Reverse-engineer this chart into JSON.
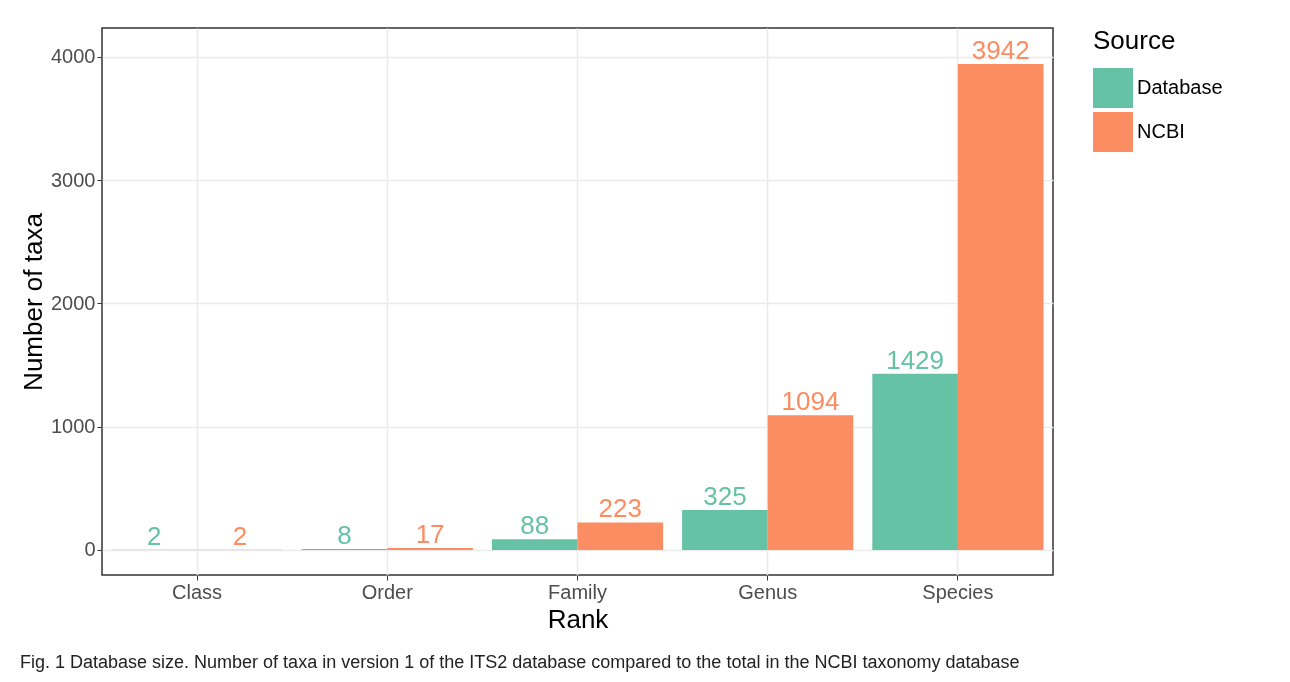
{
  "chart_data": {
    "type": "bar",
    "xlabel": "Rank",
    "ylabel": "Number of taxa",
    "legend_title": "Source",
    "categories": [
      "Class",
      "Order",
      "Family",
      "Genus",
      "Species"
    ],
    "series": [
      {
        "name": "Database",
        "color": "#66c2a5",
        "values": [
          2,
          8,
          88,
          325,
          1429
        ]
      },
      {
        "name": "NCBI",
        "color": "#fc8d62",
        "values": [
          2,
          17,
          223,
          1094,
          3942
        ]
      }
    ],
    "ylim": [
      -203,
      4235
    ],
    "yticks": [
      0,
      1000,
      2000,
      3000,
      4000
    ],
    "grid": true,
    "legend": "right",
    "data_labels": true,
    "annotations": [
      "Fig. 1 Database size. Number of taxa in version 1 of the ITS2 database compared to the total in the NCBI taxonomy database"
    ]
  }
}
